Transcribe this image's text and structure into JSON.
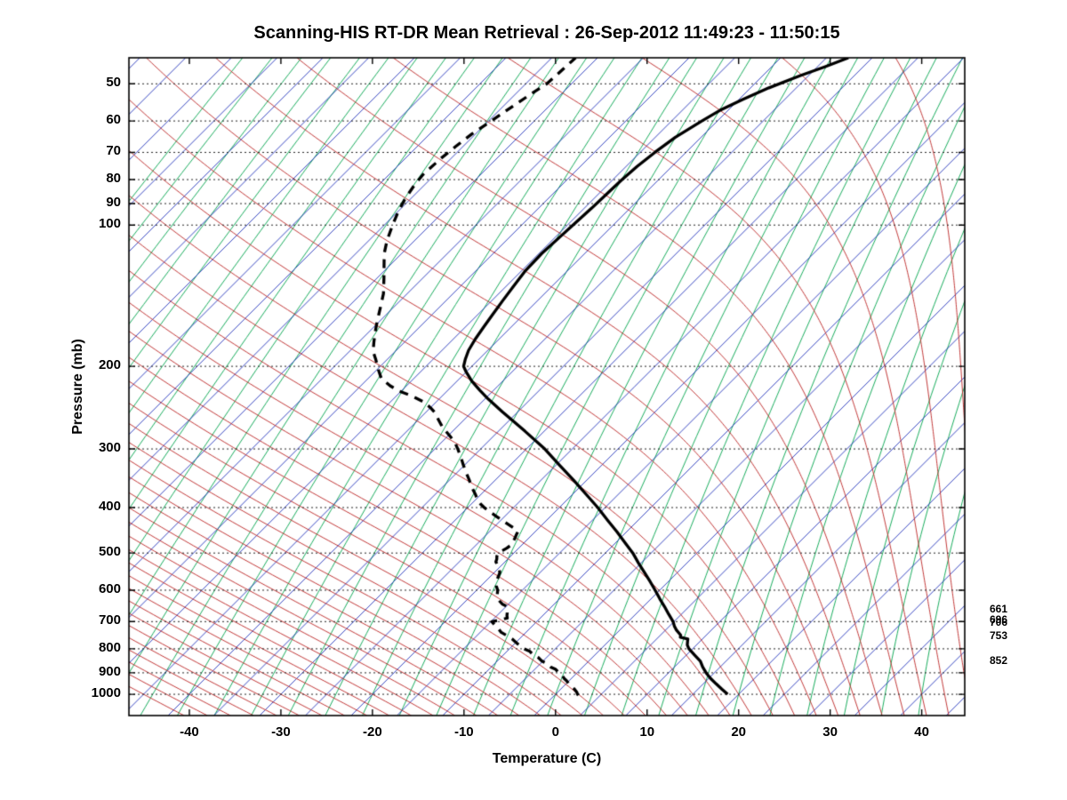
{
  "figure": {
    "background": "#ffffff",
    "frame_color": "#000000"
  },
  "chart_data": {
    "type": "skewt_logp",
    "title": "Scanning-HIS RT-DR Mean Retrieval : 26-Sep-2012 11:49:23 - 11:50:15",
    "xlabel": "Temperature (C)",
    "ylabel": "Pressure (mb)",
    "y_scale": "log",
    "x_ticks": [
      -40,
      -30,
      -20,
      -10,
      0,
      10,
      20,
      30,
      40
    ],
    "pressure_ticks": [
      50,
      60,
      70,
      80,
      90,
      100,
      200,
      300,
      400,
      500,
      600,
      700,
      800,
      900,
      1000
    ],
    "pressure_range": [
      44,
      1110
    ],
    "x_range_skewed": [
      -46.6,
      44.7
    ],
    "skew_c_per_decade": 51.3,
    "grid": {
      "style": "dotted",
      "color": "#222222"
    },
    "isotherms": {
      "color": "#2233bb",
      "min": -115,
      "max": 45,
      "step": 5
    },
    "moist_adiabats": {
      "color": "#bb2222",
      "theta_w_min": -45,
      "theta_w_max": 100,
      "step": 2.5
    },
    "mixing_ratio_lines": {
      "color": "#00a44c",
      "td1000_min": -88,
      "td1000_max": 40,
      "step": 4
    },
    "series": [
      {
        "name": "temperature",
        "style": "solid",
        "color": "#000000",
        "width": 3.3,
        "points": [
          [
            1000,
            18.8
          ],
          [
            975,
            17.6
          ],
          [
            950,
            16.4
          ],
          [
            925,
            15.2
          ],
          [
            900,
            14.1
          ],
          [
            875,
            13.1
          ],
          [
            850,
            12.2
          ],
          [
            825,
            10.9
          ],
          [
            800,
            9.6
          ],
          [
            785,
            9.0
          ],
          [
            770,
            8.6
          ],
          [
            762,
            8.4
          ],
          [
            756,
            7.4
          ],
          [
            748,
            7.2
          ],
          [
            730,
            6.2
          ],
          [
            715,
            5.5
          ],
          [
            700,
            4.9
          ],
          [
            675,
            3.6
          ],
          [
            650,
            2.3
          ],
          [
            625,
            0.9
          ],
          [
            600,
            -0.5
          ],
          [
            575,
            -2.0
          ],
          [
            550,
            -3.6
          ],
          [
            525,
            -5.3
          ],
          [
            500,
            -7.0
          ],
          [
            475,
            -9.0
          ],
          [
            450,
            -11.1
          ],
          [
            425,
            -13.4
          ],
          [
            400,
            -15.8
          ],
          [
            375,
            -18.5
          ],
          [
            350,
            -21.4
          ],
          [
            325,
            -24.6
          ],
          [
            300,
            -28.0
          ],
          [
            275,
            -32.1
          ],
          [
            250,
            -36.7
          ],
          [
            235,
            -39.6
          ],
          [
            225,
            -41.5
          ],
          [
            215,
            -43.4
          ],
          [
            205,
            -45.1
          ],
          [
            200,
            -45.9
          ],
          [
            193,
            -46.5
          ],
          [
            185,
            -47.1
          ],
          [
            175,
            -47.6
          ],
          [
            165,
            -48.0
          ],
          [
            155,
            -48.4
          ],
          [
            145,
            -48.8
          ],
          [
            135,
            -49.2
          ],
          [
            125,
            -49.6
          ],
          [
            115,
            -49.7
          ],
          [
            105,
            -49.5
          ],
          [
            100,
            -49.4
          ],
          [
            92,
            -49.2
          ],
          [
            85,
            -49.1
          ],
          [
            80,
            -49.0
          ],
          [
            75,
            -48.8
          ],
          [
            70,
            -48.4
          ],
          [
            65,
            -47.8
          ],
          [
            60,
            -46.7
          ],
          [
            57,
            -45.9
          ],
          [
            54,
            -44.6
          ],
          [
            51,
            -43.0
          ],
          [
            48,
            -40.9
          ],
          [
            46,
            -39.2
          ],
          [
            44,
            -37.6
          ]
        ]
      },
      {
        "name": "dewpoint",
        "style": "dashed",
        "color": "#000000",
        "width": 3.3,
        "points": [
          [
            1005,
            2.6
          ],
          [
            1000,
            2.4
          ],
          [
            990,
            2.1
          ],
          [
            975,
            1.5
          ],
          [
            960,
            0.8
          ],
          [
            950,
            0.3
          ],
          [
            935,
            -0.3
          ],
          [
            925,
            -0.8
          ],
          [
            910,
            -1.4
          ],
          [
            900,
            -2.0
          ],
          [
            885,
            -2.7
          ],
          [
            875,
            -3.5
          ],
          [
            860,
            -4.3
          ],
          [
            850,
            -5.1
          ],
          [
            835,
            -5.9
          ],
          [
            825,
            -6.7
          ],
          [
            810,
            -7.5
          ],
          [
            800,
            -8.4
          ],
          [
            788,
            -9.2
          ],
          [
            775,
            -10.0
          ],
          [
            762,
            -10.8
          ],
          [
            750,
            -11.7
          ],
          [
            738,
            -12.7
          ],
          [
            725,
            -13.4
          ],
          [
            712,
            -14.2
          ],
          [
            700,
            -14.9
          ],
          [
            694,
            -14.2
          ],
          [
            688,
            -13.6
          ],
          [
            680,
            -13.9
          ],
          [
            670,
            -14.2
          ],
          [
            660,
            -14.6
          ],
          [
            650,
            -14.9
          ],
          [
            642,
            -15.7
          ],
          [
            633,
            -16.3
          ],
          [
            625,
            -16.8
          ],
          [
            612,
            -17.3
          ],
          [
            600,
            -17.7
          ],
          [
            588,
            -18.3
          ],
          [
            575,
            -18.8
          ],
          [
            562,
            -19.1
          ],
          [
            550,
            -19.4
          ],
          [
            540,
            -19.9
          ],
          [
            530,
            -20.5
          ],
          [
            522,
            -21.0
          ],
          [
            515,
            -21.2
          ],
          [
            508,
            -21.5
          ],
          [
            500,
            -21.7
          ],
          [
            494,
            -21.5
          ],
          [
            488,
            -21.3
          ],
          [
            482,
            -21.2
          ],
          [
            474,
            -21.3
          ],
          [
            465,
            -21.5
          ],
          [
            458,
            -21.7
          ],
          [
            450,
            -21.9
          ],
          [
            444,
            -22.5
          ],
          [
            437,
            -23.4
          ],
          [
            430,
            -24.3
          ],
          [
            424,
            -25.1
          ],
          [
            417,
            -26.0
          ],
          [
            410,
            -26.9
          ],
          [
            404,
            -27.7
          ],
          [
            400,
            -28.2
          ],
          [
            393,
            -29.0
          ],
          [
            385,
            -29.8
          ],
          [
            375,
            -30.6
          ],
          [
            363,
            -31.7
          ],
          [
            350,
            -32.8
          ],
          [
            338,
            -33.9
          ],
          [
            325,
            -35.1
          ],
          [
            313,
            -36.2
          ],
          [
            300,
            -37.5
          ],
          [
            290,
            -38.6
          ],
          [
            280,
            -40.0
          ],
          [
            270,
            -41.5
          ],
          [
            260,
            -42.8
          ],
          [
            252,
            -43.8
          ],
          [
            245,
            -45.0
          ],
          [
            238,
            -46.4
          ],
          [
            231,
            -48.4
          ],
          [
            226,
            -50.2
          ],
          [
            220,
            -51.8
          ],
          [
            212,
            -53.6
          ],
          [
            205,
            -54.6
          ],
          [
            200,
            -55.3
          ],
          [
            193,
            -56.3
          ],
          [
            186,
            -57.4
          ],
          [
            178,
            -58.3
          ],
          [
            170,
            -59.2
          ],
          [
            160,
            -60.3
          ],
          [
            150,
            -61.4
          ],
          [
            140,
            -62.6
          ],
          [
            130,
            -64.2
          ],
          [
            122,
            -65.6
          ],
          [
            115,
            -66.9
          ],
          [
            108,
            -68.0
          ],
          [
            100,
            -69.1
          ],
          [
            94,
            -69.9
          ],
          [
            88,
            -70.6
          ],
          [
            82,
            -71.1
          ],
          [
            78,
            -71.3
          ],
          [
            72,
            -71.1
          ],
          [
            68,
            -70.8
          ],
          [
            64,
            -70.4
          ],
          [
            60,
            -69.7
          ],
          [
            56,
            -69.0
          ],
          [
            52,
            -68.2
          ],
          [
            50,
            -67.7
          ],
          [
            48,
            -67.6
          ],
          [
            46,
            -67.5
          ],
          [
            44,
            -67.4
          ]
        ]
      }
    ],
    "right_labels": [
      {
        "pressure": 661,
        "text": "661"
      },
      {
        "pressure": 696,
        "text": "696"
      },
      {
        "pressure": 706,
        "text": "706"
      },
      {
        "pressure": 753,
        "text": "753"
      },
      {
        "pressure": 852,
        "text": "852"
      }
    ]
  }
}
